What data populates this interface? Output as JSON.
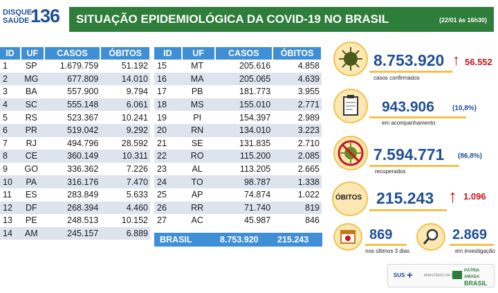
{
  "header": {
    "logo_line1": "DISQUE",
    "logo_line2": "SAÚDE",
    "logo_number": "136",
    "title": "SITUAÇÃO EPIDEMIOLÓGICA DA COVID-19 NO BRASIL",
    "date": "(22/01 às 16h30)"
  },
  "table": {
    "columns": [
      "ID",
      "UF",
      "CASOS",
      "ÓBITOS"
    ],
    "left_rows": [
      [
        "1",
        "SP",
        "1.679.759",
        "51.192"
      ],
      [
        "2",
        "MG",
        "677.809",
        "14.010"
      ],
      [
        "3",
        "BA",
        "557.900",
        "9.794"
      ],
      [
        "4",
        "SC",
        "555.148",
        "6.061"
      ],
      [
        "5",
        "RS",
        "523.367",
        "10.241"
      ],
      [
        "6",
        "PR",
        "519.042",
        "9.292"
      ],
      [
        "7",
        "RJ",
        "494.796",
        "28.592"
      ],
      [
        "8",
        "CE",
        "360.149",
        "10.311"
      ],
      [
        "9",
        "GO",
        "336.362",
        "7.226"
      ],
      [
        "10",
        "PA",
        "316.176",
        "7.470"
      ],
      [
        "11",
        "ES",
        "283.849",
        "5.633"
      ],
      [
        "12",
        "DF",
        "268.394",
        "4.460"
      ],
      [
        "13",
        "PE",
        "248.513",
        "10.152"
      ],
      [
        "14",
        "AM",
        "245.157",
        "6.889"
      ]
    ],
    "right_rows": [
      [
        "15",
        "MT",
        "205.616",
        "4.858"
      ],
      [
        "16",
        "MA",
        "205.065",
        "4.639"
      ],
      [
        "17",
        "PB",
        "181.773",
        "3.955"
      ],
      [
        "18",
        "MS",
        "155.010",
        "2.771"
      ],
      [
        "19",
        "PI",
        "154.397",
        "2.989"
      ],
      [
        "20",
        "RN",
        "134.010",
        "3.223"
      ],
      [
        "21",
        "SE",
        "131.835",
        "2.710"
      ],
      [
        "22",
        "RO",
        "115.200",
        "2.085"
      ],
      [
        "23",
        "AL",
        "113.205",
        "2.665"
      ],
      [
        "24",
        "TO",
        "98.787",
        "1.338"
      ],
      [
        "25",
        "AP",
        "74.874",
        "1.022"
      ],
      [
        "26",
        "RR",
        "71.740",
        "819"
      ],
      [
        "27",
        "AC",
        "45.987",
        "846"
      ]
    ],
    "total": {
      "label": "BRASIL",
      "casos": "8.753.920",
      "obitos": "215.243"
    }
  },
  "stats": {
    "confirmados": {
      "value": "8.753.920",
      "delta": "56.552",
      "label": "casos confirmados"
    },
    "acompanhamento": {
      "value": "943.906",
      "pct": "(10,8%)",
      "label": "em acompanhamento"
    },
    "recuperados": {
      "value": "7.594.771",
      "pct": "(86,8%)",
      "label": "recuperados"
    },
    "obitos": {
      "badge": "ÓBITOS",
      "value": "215.243",
      "delta": "1.096"
    },
    "ultimos3": {
      "value": "869",
      "label": "nos últimos 3 dias"
    },
    "investigacao": {
      "value": "2.869",
      "label": "em investigação"
    }
  },
  "footer": {
    "sus": "SUS",
    "ministerio": "MINISTÉRIO DA SAÚDE",
    "patria1": "PÁTRIA AMADA",
    "patria2": "BRASIL"
  },
  "colors": {
    "title_bg": "#2f7d3a",
    "table_header": "#3f8fd6",
    "accent_blue": "#1e4f96",
    "accent_yellow": "#f2c14a",
    "alert_red": "#c4161c"
  }
}
